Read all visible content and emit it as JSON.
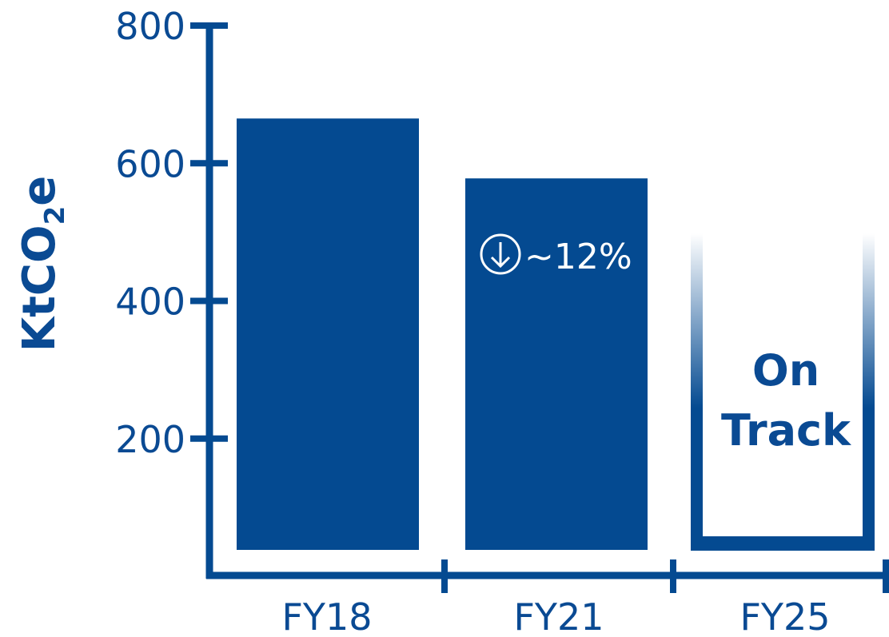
{
  "chart_data": {
    "type": "bar",
    "categories": [
      "FY18",
      "FY21",
      "FY25"
    ],
    "values": [
      665,
      578,
      null
    ],
    "ylabel": "KtCO2e",
    "ylabel_parts": {
      "main": "KtCO",
      "sub": "2",
      "tail": "e"
    },
    "yticks": [
      "200",
      "400",
      "600",
      "800"
    ],
    "ytick_values": [
      200,
      400,
      600,
      800
    ],
    "ylim": [
      0,
      800
    ],
    "annotations": {
      "reduction": {
        "category": "FY21",
        "icon": "arrow-down-circle-icon",
        "text": "~12%"
      },
      "target": {
        "category": "FY25",
        "line1": "On",
        "line2": "Track",
        "style": "gradient-outline"
      }
    },
    "colors": {
      "bar": "#044a91",
      "axis": "#044a91",
      "text": "#0a4a93",
      "annotation": "#ffffff"
    }
  }
}
